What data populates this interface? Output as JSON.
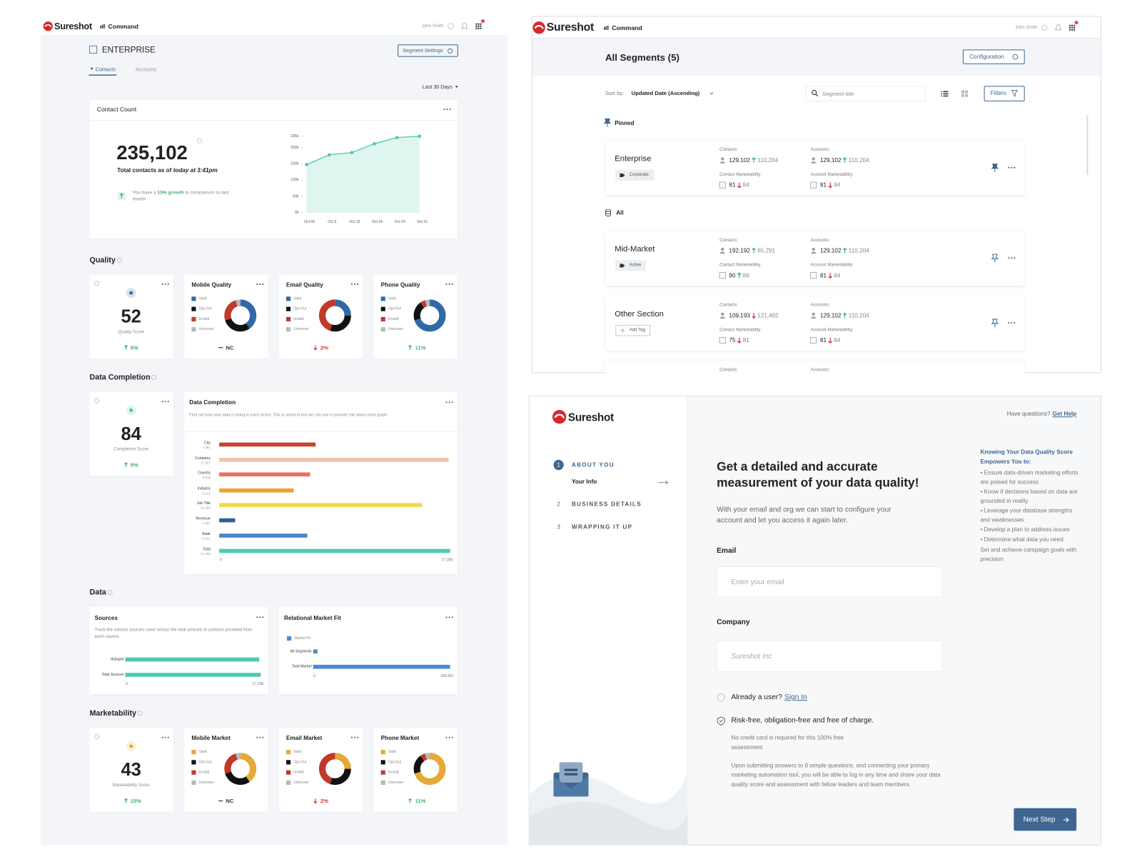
{
  "dashboard": {
    "brand": "Sureshot",
    "nav": "Command",
    "user": "John Smith",
    "title": "ENTERPRISE",
    "settings_button": "Segment Settings",
    "tabs": [
      "Contacts",
      "Accounts"
    ],
    "range": "Last 30 Days",
    "contact_count": {
      "title": "Contact Count",
      "total": "235,102",
      "caption": "Total contacts as of ",
      "caption_em": "today at 3:41pm",
      "growth_pre": "You have a ",
      "growth_highlight": "15% growth",
      "growth_post": " in comparison to last month",
      "chart": {
        "type": "line",
        "color": "#4ec9b0",
        "fill": "#dff5ef",
        "categories": [
          "Oct 02",
          "Oct 9",
          "Oct 15",
          "Oct 19",
          "Oct 24",
          "Oct 31"
        ],
        "values": [
          148000,
          178000,
          185000,
          212000,
          231000,
          235000
        ],
        "ylim": [
          0,
          235000
        ],
        "yticks": [
          {
            "value": 0,
            "label": "0k"
          },
          {
            "value": 50000,
            "label": "50k"
          },
          {
            "value": 100000,
            "label": "100k"
          },
          {
            "value": 150000,
            "label": "150k"
          },
          {
            "value": 200000,
            "label": "200k"
          },
          {
            "value": 235000,
            "label": "235k"
          }
        ]
      }
    },
    "sections": {
      "quality": "Quality",
      "completion": "Data Completion",
      "data": "Data",
      "marketability": "Marketability"
    },
    "quality": {
      "score": {
        "value": "52",
        "label": "Quality Score",
        "change": "5%",
        "trend": "up",
        "color": "#3a6ea5"
      },
      "legend": [
        "Valid",
        "Opt-Out",
        "Invalid",
        "Unknown"
      ],
      "colors": [
        "#2f6aa6",
        "#111111",
        "#c0392b",
        "#b8b8b8"
      ],
      "donuts": [
        {
          "type": "pie",
          "title": "Mobile Quality",
          "values": [
            40,
            30,
            25,
            5
          ],
          "change": "NC",
          "trend": "none"
        },
        {
          "type": "pie",
          "title": "Email Quality",
          "values": [
            25,
            30,
            45,
            0
          ],
          "change": "2%",
          "trend": "down"
        },
        {
          "type": "pie",
          "title": "Phone Quality",
          "values": [
            70,
            20,
            5,
            5
          ],
          "change": "11%",
          "trend": "up"
        }
      ]
    },
    "completion": {
      "score": {
        "value": "84",
        "label": "Completion Score",
        "change": "5%",
        "trend": "up",
        "color": "#4ec9b0"
      },
      "chart": {
        "type": "bar",
        "title": "Data Completion",
        "subtitle": "Find out how your data is doing in each sector. This is stand in text we can use to provide info about each graph",
        "categories": [
          "City",
          "Company",
          "Country",
          "Industry",
          "Job Title",
          "Revenue",
          "State",
          "Total"
        ],
        "values": [
          7261,
          17287,
          6845,
          5612,
          15291,
          1201,
          6641,
          17398
        ],
        "value_labels": [
          "7,261",
          "17,287",
          "6,845",
          "5,612",
          "15,291",
          "1,201",
          "6,641",
          "17,398"
        ],
        "colors": [
          "#c8402f",
          "#f0c2aa",
          "#e8735c",
          "#f0a030",
          "#f2d94e",
          "#2f5f9a",
          "#4a86c8",
          "#4ec9b0"
        ],
        "xlim": [
          0,
          17398
        ],
        "xticks": [
          0,
          {
            "value": 17398,
            "label": "17,398"
          }
        ]
      }
    },
    "sources": {
      "type": "bar",
      "title": "Sources",
      "subtitle": "Track the various sources used versus the total amount of contacts provided from each source.",
      "categories": [
        "Hubspot",
        "Total Sources"
      ],
      "values": [
        17000,
        17198
      ],
      "color": "#4ec9b0",
      "xlim": [
        0,
        17198
      ],
      "xticks": [
        0,
        {
          "value": 17198,
          "label": "17,198"
        }
      ]
    },
    "market_fit": {
      "type": "bar",
      "title": "Relational Market Fit",
      "legend": "Market Fit",
      "categories": [
        "All Segments",
        "Total Market"
      ],
      "values": [
        6500,
        206841
      ],
      "color": "#4a8ad4",
      "xlim": [
        0,
        206841
      ],
      "xticks": [
        0,
        {
          "value": 206841,
          "label": "206,841"
        }
      ]
    },
    "marketability": {
      "score": {
        "value": "43",
        "label": "Marketability Score",
        "change": "15%",
        "trend": "up",
        "color": "#e5a935"
      },
      "legend": [
        "Valid",
        "Opt-Out",
        "Invalid",
        "Unknown"
      ],
      "colors": [
        "#e5a935",
        "#111111",
        "#c0392b",
        "#b8b8b8"
      ],
      "donuts": [
        {
          "type": "pie",
          "title": "Mobile Market",
          "values": [
            40,
            30,
            25,
            5
          ],
          "change": "NC",
          "trend": "none"
        },
        {
          "type": "pie",
          "title": "Email Market",
          "values": [
            25,
            30,
            45,
            0
          ],
          "change": "2%",
          "trend": "down"
        },
        {
          "type": "pie",
          "title": "Phone Market",
          "values": [
            70,
            20,
            5,
            5
          ],
          "change": "11%",
          "trend": "up"
        }
      ]
    }
  },
  "segments": {
    "brand": "Sureshot",
    "nav": "Command",
    "user": "John Smith",
    "title": "All Segments (5)",
    "config_button": "Configuration",
    "sort_label": "Sort by:",
    "sort_value": "Updated Date (Ascending)",
    "search_placeholder": "Segment title",
    "filters_button": "Filters",
    "pinned": "Pinned",
    "all": "All",
    "labels": {
      "contacts": "Contacts:",
      "accounts": "Accounts:",
      "contact_mkt": "Contact Marketability:",
      "account_mkt": "Account Marketability:"
    },
    "rows": [
      {
        "name": "Enterprise",
        "tag": "Corporate",
        "tag_empty": false,
        "pinned": true,
        "contacts": {
          "value": "129,102",
          "trend": "up",
          "compare": "110,204"
        },
        "accounts": {
          "value": "129,102",
          "trend": "up",
          "compare": "110,204"
        },
        "contact_mkt": {
          "value": "81",
          "trend": "down",
          "compare": "84"
        },
        "account_mkt": {
          "value": "81",
          "trend": "down",
          "compare": "84"
        }
      },
      {
        "name": "Mid-Market",
        "tag": "Active",
        "tag_empty": false,
        "pinned": false,
        "contacts": {
          "value": "192,192",
          "trend": "up",
          "compare": "65,291"
        },
        "accounts": {
          "value": "129,102",
          "trend": "up",
          "compare": "110,204"
        },
        "contact_mkt": {
          "value": "90",
          "trend": "up",
          "compare": "86"
        },
        "account_mkt": {
          "value": "81",
          "trend": "down",
          "compare": "84"
        }
      },
      {
        "name": "Other Section",
        "tag": "Add Tag",
        "tag_empty": true,
        "pinned": false,
        "contacts": {
          "value": "109,193",
          "trend": "down",
          "compare": "121,492"
        },
        "accounts": {
          "value": "129,102",
          "trend": "up",
          "compare": "110,204"
        },
        "contact_mkt": {
          "value": "75",
          "trend": "down",
          "compare": "81"
        },
        "account_mkt": {
          "value": "81",
          "trend": "down",
          "compare": "84"
        }
      }
    ]
  },
  "onboarding": {
    "brand": "Sureshot",
    "help_pre": "Have questions?",
    "help_link": "Get Help",
    "steps": [
      {
        "number": "1",
        "title": "ABOUT YOU",
        "subtitle": "Your Info",
        "active": true
      },
      {
        "number": "2",
        "title": "BUSINESS DETAILS",
        "active": false
      },
      {
        "number": "3",
        "title": "WRAPPING IT UP",
        "active": false
      }
    ],
    "heading": "Get a detailed and accurate measurement of your data quality!",
    "intro": "With your email and org we can start to configure your account and let you access it again later.",
    "email_label": "Email",
    "email_placeholder": "Enter your email",
    "company_label": "Company",
    "company_placeholder": "Sureshot Inc",
    "signin_pre": "Already a user?",
    "signin_link": "Sign In",
    "risk_free": "Risk-free, obligation-free and free of charge.",
    "note_1": "No credit card is required for this 100% free assessment.",
    "note_2": "Upon submitting answers to 8 simple questions, and connecting your primary marketing automation tool, you will be able to log in any time and share your data quality score and assessment with fellow leaders and team members.",
    "next_button": "Next Step",
    "side_title": "Knowing Your Data Quality Score Empowers You to:",
    "side_items": [
      "• Ensure data-driven marketing efforts are poised for success",
      "• Know if decisions based on data are grounded in reality",
      "• Leverage your database strengths and weaknesses",
      "• Develop a plan to address issues",
      "• Determine what data you need",
      "Set and achieve campaign goals with precision"
    ]
  }
}
